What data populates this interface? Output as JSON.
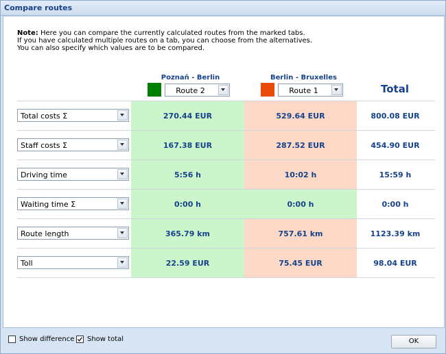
{
  "window": {
    "title": "Compare routes"
  },
  "note": {
    "label": "Note:",
    "line1": "Here you can compare the currently calculated routes from the marked tabs.",
    "line2": "If you have calculated multiple routes on a tab, you can choose from the alternatives.",
    "line3": "You can also specify which values are to be compared."
  },
  "columns": [
    {
      "title": "Poznań - Berlin",
      "route": "Route 2",
      "color": "#008000"
    },
    {
      "title": "Berlin - Bruxelles",
      "route": "Route 1",
      "color": "#e84a08"
    }
  ],
  "total_label": "Total",
  "rows": [
    {
      "metric": "Total costs Σ",
      "v1": "270.44 EUR",
      "v2": "529.64 EUR",
      "total": "800.08 EUR"
    },
    {
      "metric": "Staff costs Σ",
      "v1": "167.38 EUR",
      "v2": "287.52 EUR",
      "total": "454.90 EUR"
    },
    {
      "metric": "Driving time",
      "v1": "5:56 h",
      "v2": "10:02 h",
      "total": "15:59 h"
    },
    {
      "metric": "Waiting time Σ",
      "v1": "0:00 h",
      "v2": "0:00 h",
      "total": "0:00 h"
    },
    {
      "metric": "Route length",
      "v1": "365.79 km",
      "v2": "757.61 km",
      "total": "1123.39 km"
    },
    {
      "metric": "Toll",
      "v1": "22.59 EUR",
      "v2": "75.45 EUR",
      "total": "98.04 EUR"
    }
  ],
  "footer": {
    "show_difference": {
      "label": "Show difference",
      "checked": false
    },
    "show_total": {
      "label": "Show total",
      "checked": true
    },
    "ok_label": "OK"
  }
}
